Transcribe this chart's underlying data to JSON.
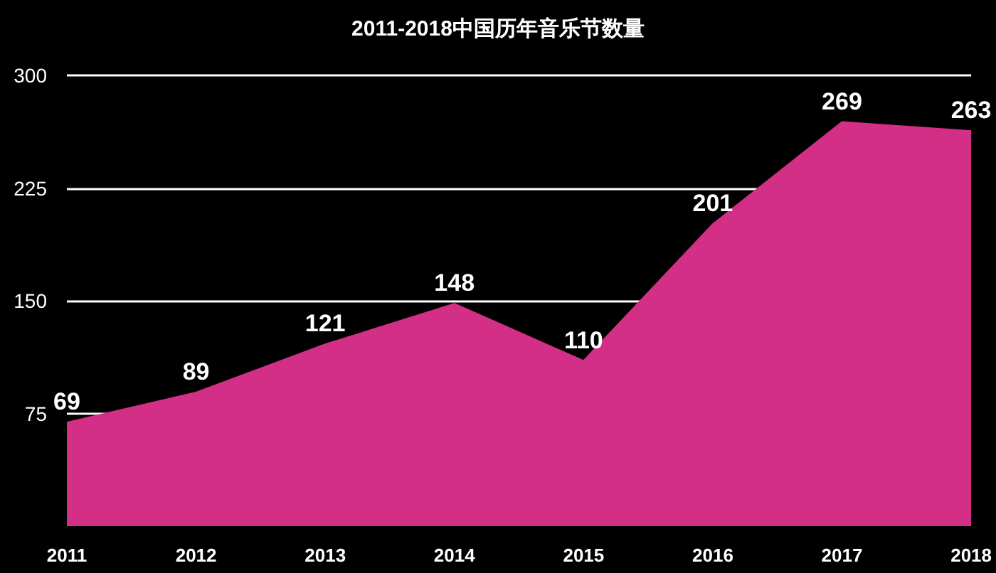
{
  "chart_data": {
    "type": "area",
    "title": "2011-2018中国历年音乐节数量",
    "categories": [
      "2011",
      "2012",
      "2013",
      "2014",
      "2015",
      "2016",
      "2017",
      "2018"
    ],
    "values": [
      69,
      89,
      121,
      148,
      110,
      201,
      269,
      263
    ],
    "color": "#d42f86",
    "ylim": [
      0,
      300
    ],
    "yticks": [
      75,
      150,
      225,
      300
    ],
    "grid": "y",
    "data_labels": true,
    "marker": "none"
  }
}
